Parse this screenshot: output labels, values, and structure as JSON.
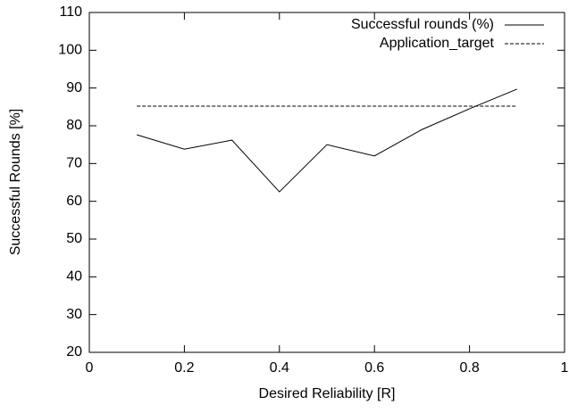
{
  "chart_data": {
    "type": "line",
    "xlabel": "Desired Reliability [R]",
    "ylabel": "Successful Rounds [%]",
    "xlim": [
      0,
      1
    ],
    "xticks": [
      0,
      0.2,
      0.4,
      0.6,
      0.8,
      1
    ],
    "ylim": [
      20,
      110
    ],
    "yticks": [
      20,
      30,
      40,
      50,
      60,
      70,
      80,
      90,
      100,
      110
    ],
    "legend": "top-right",
    "series": [
      {
        "name": "Successful rounds (%)",
        "color": "#000000",
        "dash": "solid",
        "x": [
          0.1,
          0.2,
          0.3,
          0.4,
          0.5,
          0.6,
          0.7,
          0.8,
          0.9
        ],
        "values": [
          77.6,
          73.8,
          76.2,
          62.5,
          75,
          72,
          79,
          84.5,
          89.7
        ]
      },
      {
        "name": "Application_target",
        "color": "#000000",
        "dash": "dashed",
        "x": [
          0.1,
          0.9
        ],
        "values": [
          85.2,
          85.2
        ]
      }
    ]
  }
}
